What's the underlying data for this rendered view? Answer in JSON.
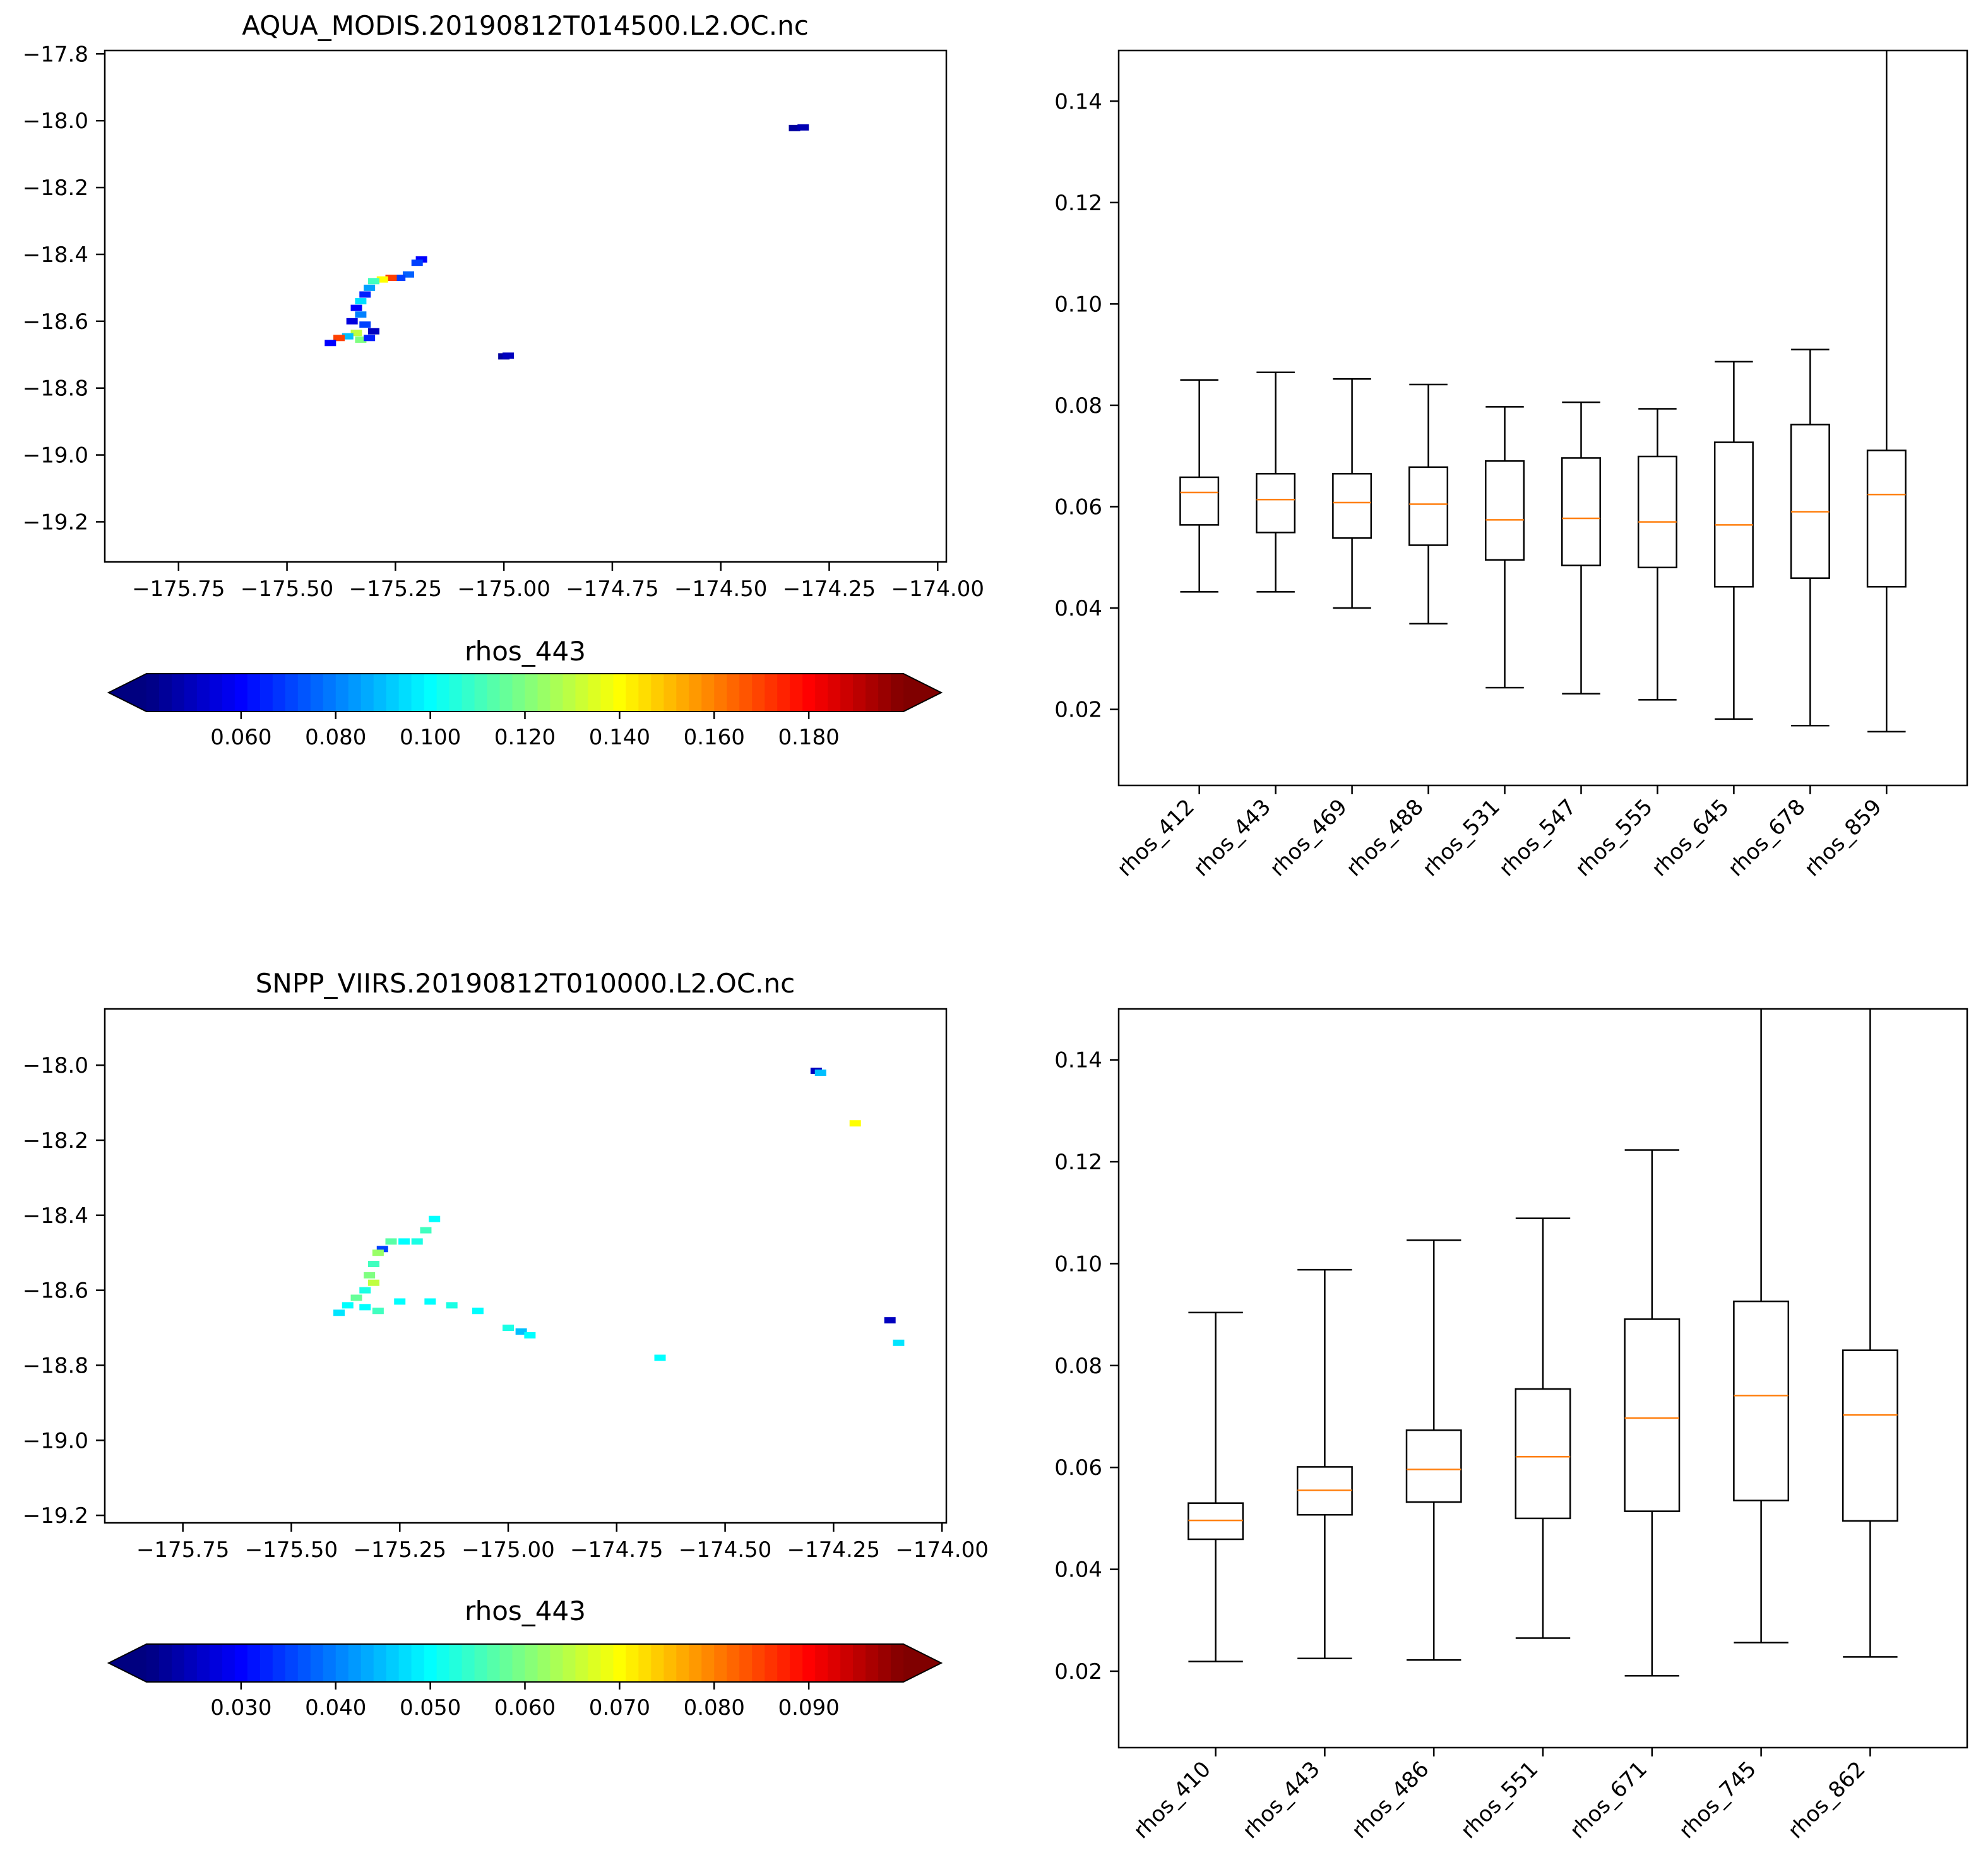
{
  "colors": {
    "median": "#ff7f0e",
    "axis": "#000000",
    "background": "#ffffff"
  },
  "chart_data": [
    {
      "type": "scatter",
      "title": "AQUA_MODIS.20190812T014500.L2.OC.nc",
      "xlabel": "",
      "ylabel": "",
      "xlim": [
        -175.92,
        -173.98
      ],
      "ylim": [
        -19.32,
        -17.79
      ],
      "xticks": [
        -175.75,
        -175.5,
        -175.25,
        -175.0,
        -174.75,
        -174.5,
        -174.25,
        -174.0
      ],
      "xtick_labels": [
        "−175.75",
        "−175.50",
        "−175.25",
        "−175.00",
        "−174.75",
        "−174.50",
        "−174.25",
        "−174.00"
      ],
      "yticks": [
        -17.8,
        -18.0,
        -18.2,
        -18.4,
        -18.6,
        -18.8,
        -19.0,
        -19.2
      ],
      "ytick_labels": [
        "−17.8",
        "−18.0",
        "−18.2",
        "−18.4",
        "−18.6",
        "−18.8",
        "−19.0",
        "−19.2"
      ],
      "colorbar": {
        "label": "rhos_443",
        "vmin": 0.04,
        "vmax": 0.2,
        "extend": "both",
        "colormap": "jet",
        "ticks": [
          0.06,
          0.08,
          0.1,
          0.12,
          0.14,
          0.16,
          0.18
        ],
        "tick_labels": [
          "0.060",
          "0.080",
          "0.100",
          "0.120",
          "0.140",
          "0.160",
          "0.180"
        ]
      },
      "points": [
        {
          "lon": -174.33,
          "lat": -18.022,
          "value": 0.045
        },
        {
          "lon": -174.31,
          "lat": -18.02,
          "value": 0.048
        },
        {
          "lon": -175.0,
          "lat": -18.705,
          "value": 0.045
        },
        {
          "lon": -174.99,
          "lat": -18.703,
          "value": 0.05
        },
        {
          "lon": -175.19,
          "lat": -18.415,
          "value": 0.06
        },
        {
          "lon": -175.2,
          "lat": -18.425,
          "value": 0.07
        },
        {
          "lon": -175.22,
          "lat": -18.46,
          "value": 0.075
        },
        {
          "lon": -175.24,
          "lat": -18.47,
          "value": 0.07
        },
        {
          "lon": -175.26,
          "lat": -18.47,
          "value": 0.17
        },
        {
          "lon": -175.28,
          "lat": -18.475,
          "value": 0.14
        },
        {
          "lon": -175.3,
          "lat": -18.48,
          "value": 0.11
        },
        {
          "lon": -175.31,
          "lat": -18.5,
          "value": 0.085
        },
        {
          "lon": -175.32,
          "lat": -18.52,
          "value": 0.065
        },
        {
          "lon": -175.33,
          "lat": -18.54,
          "value": 0.095
        },
        {
          "lon": -175.34,
          "lat": -18.56,
          "value": 0.06
        },
        {
          "lon": -175.33,
          "lat": -18.58,
          "value": 0.08
        },
        {
          "lon": -175.35,
          "lat": -18.6,
          "value": 0.055
        },
        {
          "lon": -175.32,
          "lat": -18.61,
          "value": 0.07
        },
        {
          "lon": -175.3,
          "lat": -18.63,
          "value": 0.05
        },
        {
          "lon": -175.34,
          "lat": -18.635,
          "value": 0.13
        },
        {
          "lon": -175.36,
          "lat": -18.645,
          "value": 0.09
        },
        {
          "lon": -175.38,
          "lat": -18.65,
          "value": 0.17
        },
        {
          "lon": -175.33,
          "lat": -18.655,
          "value": 0.12
        },
        {
          "lon": -175.31,
          "lat": -18.65,
          "value": 0.065
        },
        {
          "lon": -175.4,
          "lat": -18.665,
          "value": 0.06
        }
      ]
    },
    {
      "type": "box",
      "categories": [
        "rhos_412",
        "rhos_443",
        "rhos_469",
        "rhos_488",
        "rhos_531",
        "rhos_547",
        "rhos_555",
        "rhos_645",
        "rhos_678",
        "rhos_859"
      ],
      "ylim": [
        0.005,
        0.15
      ],
      "yticks": [
        0.02,
        0.04,
        0.06,
        0.08,
        0.1,
        0.12,
        0.14
      ],
      "ytick_labels": [
        "0.02",
        "0.04",
        "0.06",
        "0.08",
        "0.10",
        "0.12",
        "0.14"
      ],
      "boxes": [
        {
          "whislo": 0.0432,
          "q1": 0.0564,
          "med": 0.0628,
          "q3": 0.0658,
          "whishi": 0.085
        },
        {
          "whislo": 0.0432,
          "q1": 0.0549,
          "med": 0.0614,
          "q3": 0.0665,
          "whishi": 0.0865
        },
        {
          "whislo": 0.04,
          "q1": 0.0538,
          "med": 0.0608,
          "q3": 0.0665,
          "whishi": 0.0852
        },
        {
          "whislo": 0.0369,
          "q1": 0.0524,
          "med": 0.0605,
          "q3": 0.0678,
          "whishi": 0.0841
        },
        {
          "whislo": 0.0243,
          "q1": 0.0495,
          "med": 0.0574,
          "q3": 0.069,
          "whishi": 0.0797
        },
        {
          "whislo": 0.0231,
          "q1": 0.0484,
          "med": 0.0577,
          "q3": 0.0696,
          "whishi": 0.0806
        },
        {
          "whislo": 0.0219,
          "q1": 0.048,
          "med": 0.057,
          "q3": 0.0699,
          "whishi": 0.0793
        },
        {
          "whislo": 0.0181,
          "q1": 0.0442,
          "med": 0.0564,
          "q3": 0.0727,
          "whishi": 0.0886
        },
        {
          "whislo": 0.0168,
          "q1": 0.0459,
          "med": 0.059,
          "q3": 0.0762,
          "whishi": 0.091
        },
        {
          "whislo": 0.0156,
          "q1": 0.0442,
          "med": 0.0624,
          "q3": 0.0711,
          "whishi": 0.16
        }
      ]
    },
    {
      "type": "scatter",
      "title": "SNPP_VIIRS.20190812T010000.L2.OC.nc",
      "xlabel": "",
      "ylabel": "",
      "xlim": [
        -175.93,
        -173.99
      ],
      "ylim": [
        -19.22,
        -17.85
      ],
      "xticks": [
        -175.75,
        -175.5,
        -175.25,
        -175.0,
        -174.75,
        -174.5,
        -174.25,
        -174.0
      ],
      "xtick_labels": [
        "−175.75",
        "−175.50",
        "−175.25",
        "−175.00",
        "−174.75",
        "−174.50",
        "−174.25",
        "−174.00"
      ],
      "yticks": [
        -18.0,
        -18.2,
        -18.4,
        -18.6,
        -18.8,
        -19.0,
        -19.2
      ],
      "ytick_labels": [
        "−18.0",
        "−18.2",
        "−18.4",
        "−18.6",
        "−18.8",
        "−19.0",
        "−19.2"
      ],
      "colorbar": {
        "label": "rhos_443",
        "vmin": 0.02,
        "vmax": 0.1,
        "extend": "both",
        "colormap": "jet",
        "ticks": [
          0.03,
          0.04,
          0.05,
          0.06,
          0.07,
          0.08,
          0.09
        ],
        "tick_labels": [
          "0.030",
          "0.040",
          "0.050",
          "0.060",
          "0.070",
          "0.080",
          "0.090"
        ]
      },
      "points": [
        {
          "lon": -174.29,
          "lat": -18.015,
          "value": 0.025
        },
        {
          "lon": -174.28,
          "lat": -18.02,
          "value": 0.045
        },
        {
          "lon": -174.2,
          "lat": -18.155,
          "value": 0.07
        },
        {
          "lon": -174.12,
          "lat": -18.68,
          "value": 0.025
        },
        {
          "lon": -174.1,
          "lat": -18.74,
          "value": 0.048
        },
        {
          "lon": -174.65,
          "lat": -18.78,
          "value": 0.05
        },
        {
          "lon": -175.0,
          "lat": -18.7,
          "value": 0.052
        },
        {
          "lon": -174.97,
          "lat": -18.71,
          "value": 0.045
        },
        {
          "lon": -174.95,
          "lat": -18.72,
          "value": 0.05
        },
        {
          "lon": -175.07,
          "lat": -18.655,
          "value": 0.05
        },
        {
          "lon": -175.13,
          "lat": -18.64,
          "value": 0.052
        },
        {
          "lon": -175.18,
          "lat": -18.63,
          "value": 0.05
        },
        {
          "lon": -175.17,
          "lat": -18.41,
          "value": 0.05
        },
        {
          "lon": -175.19,
          "lat": -18.44,
          "value": 0.055
        },
        {
          "lon": -175.21,
          "lat": -18.47,
          "value": 0.052
        },
        {
          "lon": -175.24,
          "lat": -18.47,
          "value": 0.05
        },
        {
          "lon": -175.27,
          "lat": -18.47,
          "value": 0.057
        },
        {
          "lon": -175.29,
          "lat": -18.49,
          "value": 0.035
        },
        {
          "lon": -175.3,
          "lat": -18.5,
          "value": 0.062
        },
        {
          "lon": -175.31,
          "lat": -18.53,
          "value": 0.055
        },
        {
          "lon": -175.32,
          "lat": -18.56,
          "value": 0.06
        },
        {
          "lon": -175.31,
          "lat": -18.58,
          "value": 0.065
        },
        {
          "lon": -175.33,
          "lat": -18.6,
          "value": 0.052
        },
        {
          "lon": -175.35,
          "lat": -18.62,
          "value": 0.058
        },
        {
          "lon": -175.37,
          "lat": -18.64,
          "value": 0.05
        },
        {
          "lon": -175.33,
          "lat": -18.645,
          "value": 0.05
        },
        {
          "lon": -175.3,
          "lat": -18.655,
          "value": 0.055
        },
        {
          "lon": -175.25,
          "lat": -18.63,
          "value": 0.05
        },
        {
          "lon": -175.39,
          "lat": -18.66,
          "value": 0.048
        }
      ]
    },
    {
      "type": "box",
      "categories": [
        "rhos_410",
        "rhos_443",
        "rhos_486",
        "rhos_551",
        "rhos_671",
        "rhos_745",
        "rhos_862"
      ],
      "ylim": [
        0.005,
        0.15
      ],
      "yticks": [
        0.02,
        0.04,
        0.06,
        0.08,
        0.1,
        0.12,
        0.14
      ],
      "ytick_labels": [
        "0.02",
        "0.04",
        "0.06",
        "0.08",
        "0.10",
        "0.12",
        "0.14"
      ],
      "boxes": [
        {
          "whislo": 0.0219,
          "q1": 0.0459,
          "med": 0.0496,
          "q3": 0.053,
          "whishi": 0.0904
        },
        {
          "whislo": 0.0225,
          "q1": 0.0507,
          "med": 0.0555,
          "q3": 0.0601,
          "whishi": 0.0988
        },
        {
          "whislo": 0.0222,
          "q1": 0.0532,
          "med": 0.0596,
          "q3": 0.0673,
          "whishi": 0.1046
        },
        {
          "whislo": 0.0265,
          "q1": 0.05,
          "med": 0.0621,
          "q3": 0.0754,
          "whishi": 0.1089
        },
        {
          "whislo": 0.0191,
          "q1": 0.0514,
          "med": 0.0697,
          "q3": 0.0891,
          "whishi": 0.1223
        },
        {
          "whislo": 0.0256,
          "q1": 0.0535,
          "med": 0.0741,
          "q3": 0.0926,
          "whishi": 0.16
        },
        {
          "whislo": 0.0228,
          "q1": 0.0495,
          "med": 0.0703,
          "q3": 0.083,
          "whishi": 0.16
        }
      ]
    }
  ]
}
